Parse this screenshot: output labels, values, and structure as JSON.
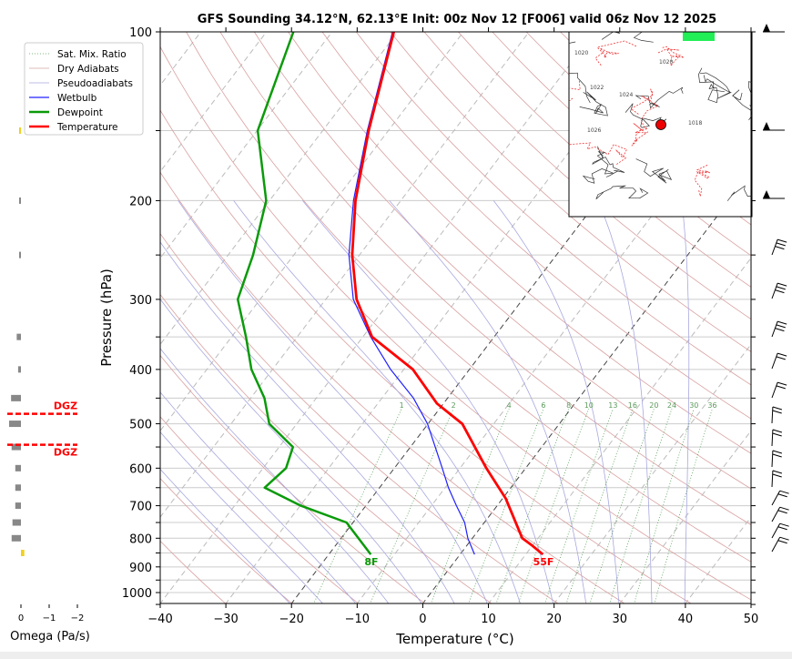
{
  "chart_data": {
    "type": "line",
    "title": "GFS Sounding 34.12°N, 62.13°E Init: 00z Nov 12 [F006] valid 06z Nov 12 2025",
    "xlabel": "Temperature (°C)",
    "ylabel": "Pressure (hPa)",
    "xlim": [
      -40,
      50
    ],
    "ylim": [
      1050,
      100
    ],
    "x_ticks": [
      "−40",
      "−30",
      "−20",
      "−10",
      "0",
      "10",
      "20",
      "30",
      "40",
      "50"
    ],
    "x_tick_values": [
      -40,
      -30,
      -20,
      -10,
      0,
      10,
      20,
      30,
      40,
      50
    ],
    "y_ticks": [
      "100",
      "200",
      "300",
      "400",
      "500",
      "600",
      "700",
      "800",
      "900",
      "1000"
    ],
    "y_tick_values": [
      100,
      200,
      300,
      400,
      500,
      600,
      700,
      800,
      900,
      1000
    ],
    "grid": true,
    "legend_position": "top-left",
    "legend": [
      "Sat. Mix. Ratio",
      "Dry Adiabats",
      "Pseudoadiabats",
      "Wetbulb",
      "Dewpoint",
      "Temperature"
    ],
    "mixing_ratio_labels": [
      "1",
      "2",
      "4",
      "6",
      "8",
      "10",
      "13",
      "16",
      "20",
      "24",
      "30",
      "36"
    ],
    "mixing_ratio_values": [
      1,
      2,
      4,
      6,
      8,
      10,
      13,
      16,
      20,
      24,
      30,
      36
    ],
    "series": [
      {
        "name": "Temperature",
        "color": "#ff0000",
        "pressure": [
          100,
          150,
          200,
          250,
          300,
          350,
          400,
          460,
          500,
          600,
          680,
          800,
          826,
          855
        ],
        "temp": [
          -70.6,
          -63.0,
          -56.9,
          -51.1,
          -45.3,
          -38.6,
          -28.6,
          -21.0,
          -14.8,
          -6.0,
          0.5,
          7.6,
          10.1,
          12.6
        ]
      },
      {
        "name": "Dewpoint",
        "color": "#0a9a0a",
        "pressure": [
          100,
          150,
          200,
          250,
          300,
          350,
          400,
          450,
          500,
          550,
          600,
          650,
          700,
          750,
          855
        ],
        "temp": [
          -85.9,
          -79.9,
          -70.5,
          -66.2,
          -63.4,
          -57.8,
          -53.2,
          -47.9,
          -44.2,
          -37.9,
          -36.5,
          -37.5,
          -29.9,
          -21.0,
          -13.6
        ]
      },
      {
        "name": "Wetbulb",
        "color": "#2020ff",
        "pressure": [
          100,
          150,
          200,
          250,
          300,
          350,
          400,
          450,
          500,
          600,
          650,
          700,
          750,
          800,
          855
        ],
        "temp": [
          -70.8,
          -63.2,
          -57.2,
          -51.6,
          -45.8,
          -38.8,
          -32.0,
          -25.2,
          -20.1,
          -12.7,
          -9.5,
          -6.2,
          -3.0,
          -0.7,
          2.2
        ]
      }
    ],
    "surface_labels": {
      "dewpoint": "8F",
      "temperature": "55F"
    },
    "omega_panel": {
      "xlabel": "Omega (Pa/s)",
      "ticks": [
        "0",
        "−1",
        "−2"
      ],
      "tick_values": [
        0,
        -1,
        -2
      ],
      "pressure": [
        150,
        200,
        250,
        350,
        400,
        450,
        500,
        550,
        600,
        650,
        700,
        750,
        800,
        850
      ],
      "omega": [
        0.02,
        0.05,
        0.03,
        0.15,
        0.1,
        0.35,
        0.42,
        0.33,
        0.2,
        0.2,
        0.2,
        0.3,
        0.33,
        -0.12
      ],
      "dgz_label": "DGZ",
      "dgz_pressure": [
        480,
        545
      ]
    },
    "inset_map": {
      "isobar_labels": [
        "1022",
        "1020",
        "1026",
        "1024",
        "1018",
        "1020"
      ],
      "marker_color": "#ee0000"
    }
  }
}
